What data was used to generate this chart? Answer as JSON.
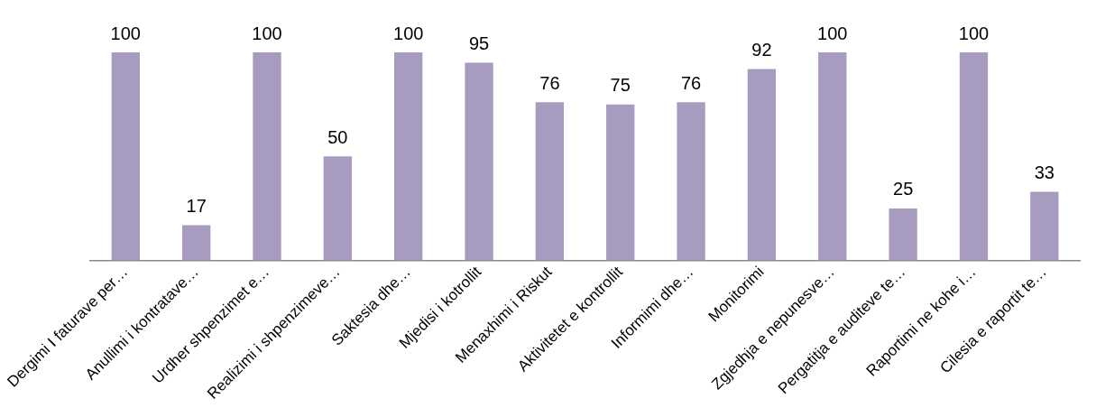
{
  "chart_data": {
    "type": "bar",
    "categories": [
      "Dergimi I faturave per…",
      "Anullimi i kontratave…",
      "Urdher shpenzimet e…",
      "Realizimi i shpenzimeve…",
      "Saktesia dhe…",
      "Mjedisi i kotrollit",
      "Menaxhimi i Riskut",
      "Aktivitetet e kontrollit",
      "Informimi dhe…",
      "Monitorimi",
      "Zgjedhja e nepunesve…",
      "Pergatitja e auditeve te…",
      "Raportimi ne kohe i…",
      "Cilesia e raportit te…"
    ],
    "values": [
      100,
      17,
      100,
      50,
      100,
      95,
      76,
      75,
      76,
      92,
      100,
      25,
      100,
      33
    ],
    "color": "#a79bbf",
    "data_labels": true,
    "grid": false,
    "legend": false
  }
}
